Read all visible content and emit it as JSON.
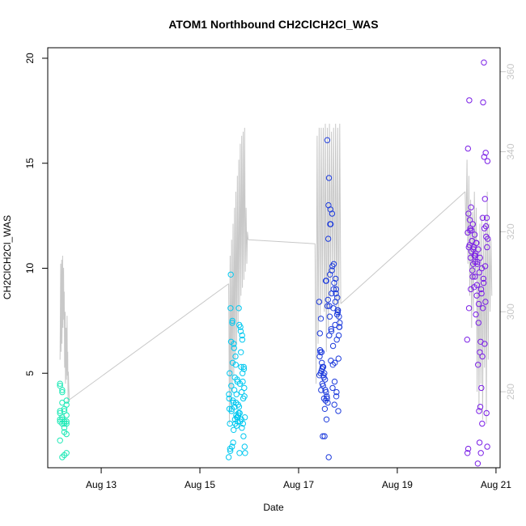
{
  "chart_data": {
    "type": "scatter",
    "title": "ATOM1 Northbound CH2ClCH2Cl_WAS",
    "xlabel": "Date",
    "ylabel": "CH2ClCH2Cl_WAS",
    "x_axis": {
      "type": "date",
      "range": [
        "2023-08-11T22:00",
        "2023-08-21T02:00"
      ],
      "ticks": [
        {
          "value": "2023-08-13",
          "label": "Aug 13"
        },
        {
          "value": "2023-08-15",
          "label": "Aug 15"
        },
        {
          "value": "2023-08-17",
          "label": "Aug 17"
        },
        {
          "value": "2023-08-19",
          "label": "Aug 19"
        },
        {
          "value": "2023-08-21",
          "label": "Aug 21"
        }
      ]
    },
    "y_axis": {
      "range": [
        0.5,
        20.5
      ],
      "ticks": [
        5,
        10,
        15,
        20
      ]
    },
    "y2_axis": {
      "range": [
        261,
        366
      ],
      "ticks": [
        280,
        300,
        320,
        340,
        360
      ],
      "color": "#c8c8c8"
    },
    "grid": false,
    "line_color": "#c8c8c8",
    "point_colormap": [
      "#1de9b6",
      "#00c8f0",
      "#1e3cdc",
      "#7a1ee6"
    ],
    "series": [
      {
        "kind": "points",
        "axis": "left",
        "groups": [
          {
            "color": "#1de9b6",
            "start": "2023-08-12T04:00",
            "end": "2023-08-12T08:00",
            "values": [
              4.4,
              4.2,
              3.3,
              3.0,
              2.8,
              2.6,
              2.4,
              2.1,
              1.8,
              1.0,
              1.1,
              3.5,
              3.1,
              2.9,
              2.7,
              2.6,
              4.5,
              3.6,
              2.2,
              1.2,
              3.2,
              2.8,
              2.6,
              3.7,
              2.7,
              4.1,
              3.2,
              2.7
            ]
          },
          {
            "color": "#00c8f0",
            "start": "2023-08-15T14:00",
            "end": "2023-08-15T22:00",
            "values": [
              1.0,
              1.3,
              1.5,
              2.3,
              2.6,
              2.9,
              3.1,
              2.7,
              2.4,
              2.0,
              1.2,
              1.4,
              3.3,
              3.6,
              2.8,
              2.5,
              3.0,
              4.5,
              4.1,
              3.8,
              2.9,
              2.6,
              3.2,
              1.7,
              4.8,
              4.0,
              3.5,
              3.1,
              2.8,
              2.6,
              1.5,
              5.0,
              4.4,
              3.7,
              3.4,
              3.0,
              2.7,
              1.2,
              5.3,
              4.6,
              3.9,
              3.3,
              6.5,
              5.5,
              4.2,
              3.6,
              2.9,
              7.3,
              6.0,
              5.0,
              4.3,
              3.8,
              9.7,
              7.5,
              6.2,
              5.4,
              4.6,
              3.4,
              7.0,
              6.6,
              5.2,
              4.0,
              8.1,
              7.4,
              6.4,
              5.8,
              4.7,
              8.1,
              7.2,
              6.8,
              5.3
            ]
          },
          {
            "color": "#1e3cdc",
            "start": "2023-08-17T10:00",
            "end": "2023-08-17T20:00",
            "values": [
              8.4,
              7.6,
              5.3,
              5.0,
              4.1,
              3.6,
              8.2,
              7.1,
              5.4,
              4.6,
              3.9,
              8.0,
              7.4,
              5.0,
              4.5,
              3.8,
              9.4,
              8.2,
              6.8,
              5.6,
              4.3,
              3.5,
              9.0,
              7.9,
              7.2,
              6.0,
              5.2,
              4.8,
              3.7,
              16.1,
              14.3,
              12.1,
              10.1,
              9.3,
              8.8,
              8.0,
              7.2,
              6.1,
              5.5,
              4.9,
              4.2,
              3.8,
              1.0,
              12.8,
              12.6,
              10.2,
              9.5,
              8.6,
              7.7,
              6.9,
              6.0,
              5.3,
              4.7,
              3.9,
              13.0,
              12.1,
              9.9,
              9.0,
              8.4,
              7.8,
              6.8,
              5.8,
              5.1,
              4.4,
              3.3,
              2.8,
              11.4,
              9.7,
              8.8,
              8.1,
              7.3,
              6.6,
              5.7,
              4.9,
              4.2,
              2.0,
              2.0,
              9.4,
              8.5,
              7.7,
              7.0,
              6.3,
              5.5,
              4.1,
              3.2
            ]
          },
          {
            "color": "#7a1ee6",
            "start": "2023-08-20T10:00",
            "end": "2023-08-20T20:00",
            "values": [
              6.6,
              8.1,
              9.0,
              9.6,
              10.6,
              11.2,
              5.4,
              6.0,
              8.8,
              9.5,
              10.1,
              11.0,
              15.7,
              12.3,
              11.8,
              10.9,
              10.3,
              9.2,
              8.3,
              6.5,
              5.8,
              15.3,
              12.0,
              11.4,
              11.0,
              10.5,
              9.9,
              9.1,
              7.8,
              0.7,
              1.7,
              4.3,
              17.9,
              13.3,
              12.4,
              11.7,
              11.1,
              10.8,
              10.2,
              9.6,
              8.7,
              7.4,
              3.4,
              2.6,
              19.8,
              15.5,
              15.1,
              12.6,
              11.9,
              11.3,
              11.0,
              10.7,
              10.3,
              9.8,
              9.0,
              8.1,
              6.4,
              3.1,
              1.2,
              18.0,
              12.9,
              12.1,
              11.6,
              11.2,
              10.9,
              10.5,
              10.0,
              9.3,
              8.4,
              1.5,
              1.4,
              11.8,
              11.3,
              11.0,
              10.6,
              10.2,
              3.2,
              1.2,
              12.4,
              11.9,
              11.5
            ]
          }
        ]
      },
      {
        "kind": "line",
        "axis": "right",
        "color": "#c8c8c8",
        "segments": [
          {
            "start": "2023-08-12T04:00",
            "end": "2023-08-12T08:30",
            "values": [
              288,
              300,
              312,
              290,
              302,
              313,
              292,
              304,
              314,
              296,
              306,
              311,
              298,
              305,
              286,
              296,
              300,
              282,
              292,
              296,
              283,
              291,
              299,
              284,
              290,
              277,
              285,
              282,
              280,
              278
            ]
          },
          {
            "connector_from": "2023-08-12T08:30",
            "connector_to": "2023-08-15T14:00",
            "values": [
              278,
              307
            ]
          },
          {
            "start": "2023-08-15T14:00",
            "end": "2023-08-15T23:30",
            "values": [
              307,
              272,
              314,
              276,
              318,
              280,
              322,
              284,
              326,
              288,
              330,
              292,
              334,
              296,
              338,
              300,
              342,
              304,
              344,
              306,
              345,
              308,
              346,
              310,
              326,
              312,
              320,
              318
            ]
          },
          {
            "connector_from": "2023-08-15T23:30",
            "connector_to": "2023-08-17T08:00",
            "values": [
              318,
              317
            ]
          },
          {
            "start": "2023-08-17T08:00",
            "end": "2023-08-17T20:30",
            "values": [
              317,
              282,
              344,
              292,
              346,
              298,
              346,
              302,
              346,
              300,
              347,
              290,
              346,
              296,
              347,
              304,
              345,
              308,
              346,
              302,
              347,
              300,
              346,
              296,
              347,
              302
            ]
          },
          {
            "connector_from": "2023-08-17T20:30",
            "connector_to": "2023-08-20T09:00",
            "values": [
              302,
              330
            ]
          },
          {
            "start": "2023-08-20T09:00",
            "end": "2023-08-20T22:00",
            "values": [
              330,
              319,
              338,
              312,
              334,
              304,
              328,
              296,
              325,
              300,
              330,
              308,
              326,
              280,
              318,
              275,
              322,
              282,
              324,
              273,
              320,
              286,
              324,
              272,
              330,
              288,
              322,
              300,
              318,
              304
            ]
          }
        ]
      }
    ]
  }
}
